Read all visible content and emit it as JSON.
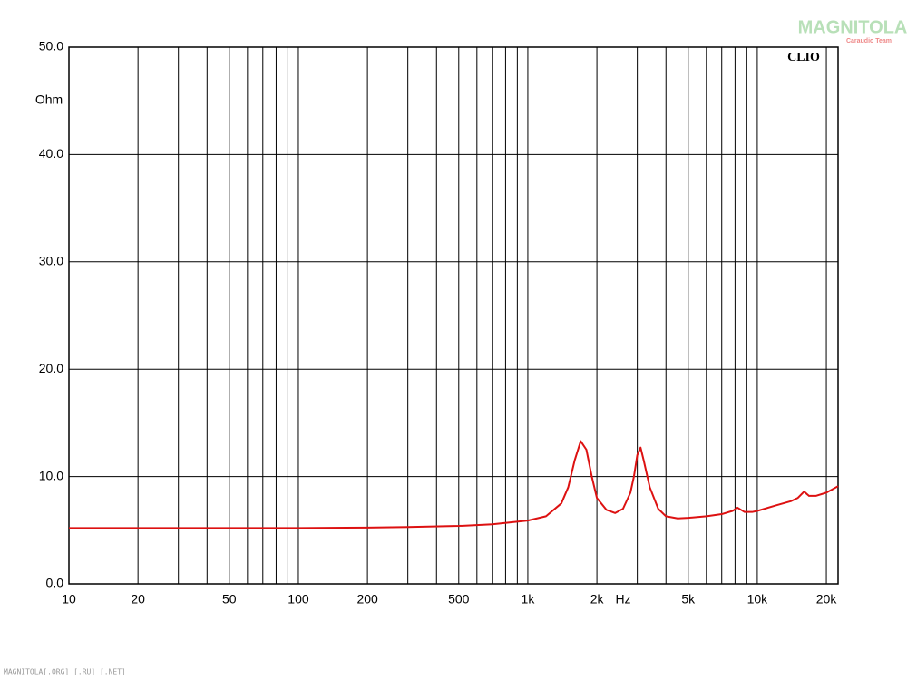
{
  "chart_data": {
    "type": "line",
    "log_x": true,
    "grid": true,
    "xlabel": "Hz",
    "ylabel": "Ohm",
    "annotation": "CLIO",
    "color": "#dd1111",
    "xlim": [
      10,
      22500
    ],
    "ylim": [
      0,
      50
    ],
    "yticks": [
      {
        "value": 0,
        "label": "0.0"
      },
      {
        "value": 10,
        "label": "10.0"
      },
      {
        "value": 20,
        "label": "20.0"
      },
      {
        "value": 30,
        "label": "30.0"
      },
      {
        "value": 40,
        "label": "40.0"
      },
      {
        "value": 50,
        "label": "50.0"
      }
    ],
    "xticks": [
      10,
      20,
      50,
      100,
      200,
      500,
      {
        "value": 1000,
        "label": "1k"
      },
      {
        "value": 2000,
        "label": "2k"
      },
      {
        "value": 5000,
        "label": "5k"
      },
      {
        "value": 10000,
        "label": "10k"
      },
      {
        "value": 20000,
        "label": "20k"
      }
    ],
    "xminorticks": [
      30,
      40,
      60,
      70,
      80,
      90,
      300,
      400,
      600,
      700,
      800,
      900,
      3000,
      4000,
      6000,
      7000,
      8000,
      9000
    ],
    "x": [
      10,
      20,
      50,
      100,
      200,
      300,
      500,
      700,
      1000,
      1200,
      1400,
      1500,
      1600,
      1700,
      1800,
      1900,
      2000,
      2200,
      2400,
      2600,
      2800,
      2900,
      3000,
      3100,
      3200,
      3400,
      3700,
      4000,
      4500,
      5000,
      6000,
      7000,
      7800,
      8200,
      8800,
      9500,
      10000,
      12000,
      14000,
      15000,
      16000,
      16800,
      18000,
      20000,
      22500
    ],
    "values": [
      5.2,
      5.2,
      5.2,
      5.2,
      5.25,
      5.3,
      5.4,
      5.55,
      5.9,
      6.3,
      7.5,
      9.0,
      11.5,
      13.3,
      12.5,
      10.0,
      8.0,
      6.9,
      6.6,
      7.0,
      8.5,
      10.0,
      12.0,
      12.7,
      11.5,
      9.0,
      7.0,
      6.3,
      6.1,
      6.15,
      6.3,
      6.5,
      6.8,
      7.1,
      6.7,
      6.7,
      6.8,
      7.3,
      7.7,
      8.0,
      8.6,
      8.2,
      8.2,
      8.5,
      9.1
    ]
  },
  "watermark": {
    "title": "MAGNITOLA",
    "subtitle": "Caraudio Team"
  },
  "footer": "MAGNITOLA[.ORG] [.RU] [.NET]"
}
